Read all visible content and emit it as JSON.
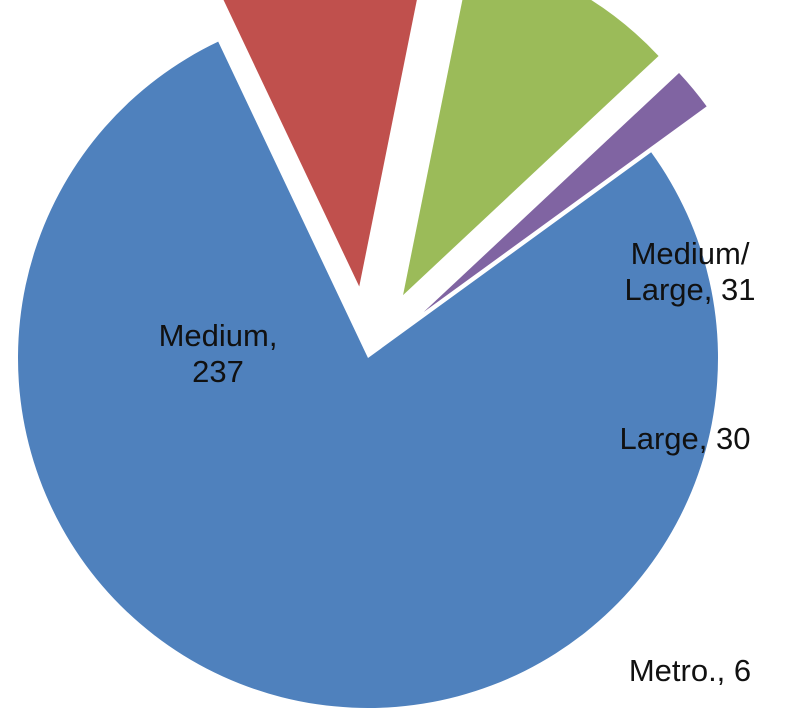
{
  "chart_data": {
    "type": "pie",
    "title": "",
    "categories": [
      "Medium",
      "Medium/ Large",
      "Large",
      "Metro."
    ],
    "values": [
      237,
      31,
      30,
      6
    ],
    "colors": [
      "#4F81BD",
      "#C0504D",
      "#9BBB59",
      "#8064A2"
    ],
    "data_labels": [
      [
        "Medium,",
        "237"
      ],
      [
        "Medium/",
        "Large, 31"
      ],
      [
        "Large, 30"
      ],
      [
        "Metro., 6"
      ]
    ],
    "exploded": true,
    "legend": "none"
  }
}
